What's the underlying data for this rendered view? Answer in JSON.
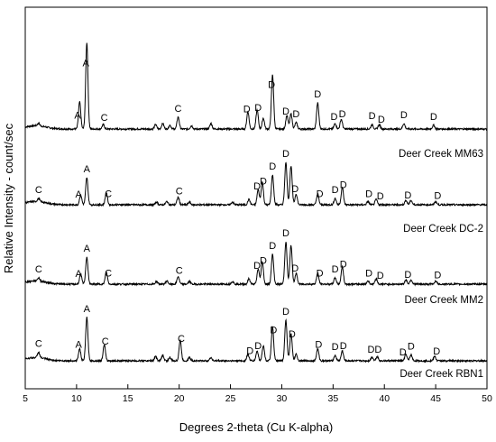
{
  "chart_data": {
    "type": "line",
    "xlabel": "Degrees 2-theta (Cu K-alpha)",
    "ylabel": "Relative Intensity - count/sec",
    "xlim": [
      5,
      50
    ],
    "x_ticks": [
      5,
      10,
      15,
      20,
      25,
      30,
      35,
      40,
      45,
      50
    ],
    "grid": false,
    "legend": "none",
    "line_color": "#000000",
    "series": [
      {
        "name": "Deer Creek MM63",
        "background_counts": 100,
        "peaks": [
          {
            "two_theta": 6.3,
            "intensity": 5
          },
          {
            "two_theta": 10.3,
            "intensity": 50
          },
          {
            "two_theta": 11.0,
            "intensity": 160
          },
          {
            "two_theta": 12.6,
            "intensity": 8
          },
          {
            "two_theta": 17.7,
            "intensity": 8
          },
          {
            "two_theta": 18.4,
            "intensity": 10
          },
          {
            "two_theta": 19.1,
            "intensity": 7
          },
          {
            "two_theta": 19.9,
            "intensity": 22
          },
          {
            "two_theta": 21.2,
            "intensity": 6
          },
          {
            "two_theta": 23.1,
            "intensity": 10
          },
          {
            "two_theta": 26.7,
            "intensity": 32
          },
          {
            "two_theta": 27.6,
            "intensity": 35
          },
          {
            "two_theta": 28.2,
            "intensity": 20
          },
          {
            "two_theta": 29.1,
            "intensity": 100
          },
          {
            "two_theta": 30.5,
            "intensity": 25
          },
          {
            "two_theta": 30.9,
            "intensity": 28
          },
          {
            "two_theta": 31.4,
            "intensity": 12
          },
          {
            "two_theta": 33.5,
            "intensity": 48
          },
          {
            "two_theta": 35.2,
            "intensity": 10
          },
          {
            "two_theta": 35.8,
            "intensity": 18
          },
          {
            "two_theta": 38.8,
            "intensity": 8
          },
          {
            "two_theta": 39.5,
            "intensity": 8
          },
          {
            "two_theta": 41.9,
            "intensity": 10
          },
          {
            "two_theta": 44.8,
            "intensity": 7
          }
        ],
        "labels": [
          {
            "two_theta": 10.1,
            "text": "A"
          },
          {
            "two_theta": 10.9,
            "text": "A"
          },
          {
            "two_theta": 12.7,
            "text": "C"
          },
          {
            "two_theta": 19.9,
            "text": "C"
          },
          {
            "two_theta": 26.6,
            "text": "D"
          },
          {
            "two_theta": 27.7,
            "text": "D"
          },
          {
            "two_theta": 29.0,
            "text": "D"
          },
          {
            "two_theta": 30.4,
            "text": "D"
          },
          {
            "two_theta": 31.4,
            "text": "D"
          },
          {
            "two_theta": 33.5,
            "text": "D"
          },
          {
            "two_theta": 35.1,
            "text": "D"
          },
          {
            "two_theta": 35.9,
            "text": "D"
          },
          {
            "two_theta": 38.8,
            "text": "D"
          },
          {
            "two_theta": 39.7,
            "text": "D"
          },
          {
            "two_theta": 41.9,
            "text": "D"
          },
          {
            "two_theta": 44.8,
            "text": "D"
          }
        ]
      },
      {
        "name": "Deer Creek DC-2",
        "background_counts": 100,
        "peaks": [
          {
            "two_theta": 6.3,
            "intensity": 6
          },
          {
            "two_theta": 10.4,
            "intensity": 18
          },
          {
            "two_theta": 11.0,
            "intensity": 50
          },
          {
            "two_theta": 12.9,
            "intensity": 22
          },
          {
            "two_theta": 17.8,
            "intensity": 5
          },
          {
            "two_theta": 18.8,
            "intensity": 6
          },
          {
            "two_theta": 19.9,
            "intensity": 14
          },
          {
            "two_theta": 21.0,
            "intensity": 5
          },
          {
            "two_theta": 25.2,
            "intensity": 5
          },
          {
            "two_theta": 26.8,
            "intensity": 10
          },
          {
            "two_theta": 27.7,
            "intensity": 28
          },
          {
            "two_theta": 28.1,
            "intensity": 42
          },
          {
            "two_theta": 29.1,
            "intensity": 55
          },
          {
            "two_theta": 30.4,
            "intensity": 78
          },
          {
            "two_theta": 30.9,
            "intensity": 72
          },
          {
            "two_theta": 31.4,
            "intensity": 20
          },
          {
            "two_theta": 33.5,
            "intensity": 20
          },
          {
            "two_theta": 35.2,
            "intensity": 12
          },
          {
            "two_theta": 35.9,
            "intensity": 32
          },
          {
            "two_theta": 38.4,
            "intensity": 6
          },
          {
            "two_theta": 39.2,
            "intensity": 10
          },
          {
            "two_theta": 42.1,
            "intensity": 8
          },
          {
            "two_theta": 42.6,
            "intensity": 8
          },
          {
            "two_theta": 45.0,
            "intensity": 6
          }
        ],
        "labels": [
          {
            "two_theta": 6.3,
            "text": "C"
          },
          {
            "two_theta": 10.2,
            "text": "A"
          },
          {
            "two_theta": 11.0,
            "text": "A"
          },
          {
            "two_theta": 13.1,
            "text": "C"
          },
          {
            "two_theta": 20.0,
            "text": "C"
          },
          {
            "two_theta": 27.6,
            "text": "D"
          },
          {
            "two_theta": 28.2,
            "text": "D"
          },
          {
            "two_theta": 29.1,
            "text": "D"
          },
          {
            "two_theta": 30.4,
            "text": "D"
          },
          {
            "two_theta": 31.3,
            "text": "D"
          },
          {
            "two_theta": 33.7,
            "text": "D"
          },
          {
            "two_theta": 35.2,
            "text": "D"
          },
          {
            "two_theta": 36.0,
            "text": "D"
          },
          {
            "two_theta": 38.5,
            "text": "D"
          },
          {
            "two_theta": 39.6,
            "text": "D"
          },
          {
            "two_theta": 42.3,
            "text": "D"
          },
          {
            "two_theta": 45.2,
            "text": "D"
          }
        ]
      },
      {
        "name": "Deer Creek MM2",
        "background_counts": 100,
        "peaks": [
          {
            "two_theta": 6.3,
            "intensity": 6
          },
          {
            "two_theta": 10.4,
            "intensity": 18
          },
          {
            "two_theta": 11.0,
            "intensity": 50
          },
          {
            "two_theta": 12.9,
            "intensity": 22
          },
          {
            "two_theta": 17.8,
            "intensity": 5
          },
          {
            "two_theta": 18.8,
            "intensity": 6
          },
          {
            "two_theta": 19.9,
            "intensity": 14
          },
          {
            "two_theta": 21.0,
            "intensity": 5
          },
          {
            "two_theta": 25.2,
            "intensity": 5
          },
          {
            "two_theta": 26.8,
            "intensity": 10
          },
          {
            "two_theta": 27.7,
            "intensity": 28
          },
          {
            "two_theta": 28.1,
            "intensity": 42
          },
          {
            "two_theta": 29.1,
            "intensity": 55
          },
          {
            "two_theta": 30.4,
            "intensity": 78
          },
          {
            "two_theta": 30.9,
            "intensity": 72
          },
          {
            "two_theta": 31.4,
            "intensity": 20
          },
          {
            "two_theta": 33.5,
            "intensity": 20
          },
          {
            "two_theta": 35.2,
            "intensity": 12
          },
          {
            "two_theta": 35.9,
            "intensity": 32
          },
          {
            "two_theta": 38.4,
            "intensity": 6
          },
          {
            "two_theta": 39.2,
            "intensity": 10
          },
          {
            "two_theta": 42.1,
            "intensity": 8
          },
          {
            "two_theta": 42.6,
            "intensity": 8
          },
          {
            "two_theta": 45.0,
            "intensity": 6
          }
        ],
        "labels": [
          {
            "two_theta": 6.3,
            "text": "C"
          },
          {
            "two_theta": 10.2,
            "text": "A"
          },
          {
            "two_theta": 11.0,
            "text": "A"
          },
          {
            "two_theta": 13.1,
            "text": "C"
          },
          {
            "two_theta": 20.0,
            "text": "C"
          },
          {
            "two_theta": 27.6,
            "text": "D"
          },
          {
            "two_theta": 28.2,
            "text": "D"
          },
          {
            "two_theta": 29.1,
            "text": "D"
          },
          {
            "two_theta": 30.4,
            "text": "D"
          },
          {
            "two_theta": 31.3,
            "text": "D"
          },
          {
            "two_theta": 33.7,
            "text": "D"
          },
          {
            "two_theta": 35.2,
            "text": "D"
          },
          {
            "two_theta": 36.0,
            "text": "D"
          },
          {
            "two_theta": 38.5,
            "text": "D"
          },
          {
            "two_theta": 39.6,
            "text": "D"
          },
          {
            "two_theta": 42.3,
            "text": "D"
          },
          {
            "two_theta": 45.2,
            "text": "D"
          }
        ]
      },
      {
        "name": "Deer Creek RBN1",
        "background_counts": 100,
        "peaks": [
          {
            "two_theta": 6.3,
            "intensity": 10
          },
          {
            "two_theta": 10.3,
            "intensity": 22
          },
          {
            "two_theta": 11.0,
            "intensity": 80
          },
          {
            "two_theta": 12.7,
            "intensity": 30
          },
          {
            "two_theta": 17.7,
            "intensity": 8
          },
          {
            "two_theta": 18.4,
            "intensity": 10
          },
          {
            "two_theta": 19.1,
            "intensity": 6
          },
          {
            "two_theta": 20.1,
            "intensity": 38
          },
          {
            "two_theta": 21.0,
            "intensity": 6
          },
          {
            "two_theta": 23.1,
            "intensity": 6
          },
          {
            "two_theta": 26.7,
            "intensity": 12
          },
          {
            "two_theta": 27.6,
            "intensity": 18
          },
          {
            "two_theta": 28.2,
            "intensity": 28
          },
          {
            "two_theta": 29.1,
            "intensity": 62
          },
          {
            "two_theta": 30.4,
            "intensity": 75
          },
          {
            "two_theta": 30.9,
            "intensity": 50
          },
          {
            "two_theta": 31.4,
            "intensity": 12
          },
          {
            "two_theta": 33.5,
            "intensity": 22
          },
          {
            "two_theta": 35.2,
            "intensity": 10
          },
          {
            "two_theta": 35.9,
            "intensity": 18
          },
          {
            "two_theta": 38.8,
            "intensity": 7
          },
          {
            "two_theta": 39.3,
            "intensity": 8
          },
          {
            "two_theta": 42.1,
            "intensity": 12
          },
          {
            "two_theta": 42.6,
            "intensity": 11
          },
          {
            "two_theta": 44.9,
            "intensity": 8
          }
        ],
        "labels": [
          {
            "two_theta": 6.3,
            "text": "C"
          },
          {
            "two_theta": 10.2,
            "text": "A"
          },
          {
            "two_theta": 11.0,
            "text": "A"
          },
          {
            "two_theta": 12.8,
            "text": "C"
          },
          {
            "two_theta": 20.2,
            "text": "C"
          },
          {
            "two_theta": 26.9,
            "text": "D"
          },
          {
            "two_theta": 27.7,
            "text": "D"
          },
          {
            "two_theta": 29.2,
            "text": "D"
          },
          {
            "two_theta": 30.4,
            "text": "D"
          },
          {
            "two_theta": 31.0,
            "text": "D"
          },
          {
            "two_theta": 33.6,
            "text": "D"
          },
          {
            "two_theta": 35.2,
            "text": "D"
          },
          {
            "two_theta": 36.0,
            "text": "D"
          },
          {
            "two_theta": 38.7,
            "text": "D"
          },
          {
            "two_theta": 39.4,
            "text": "D"
          },
          {
            "two_theta": 41.8,
            "text": "D"
          },
          {
            "two_theta": 42.6,
            "text": "D"
          },
          {
            "two_theta": 45.1,
            "text": "D"
          }
        ]
      }
    ]
  }
}
